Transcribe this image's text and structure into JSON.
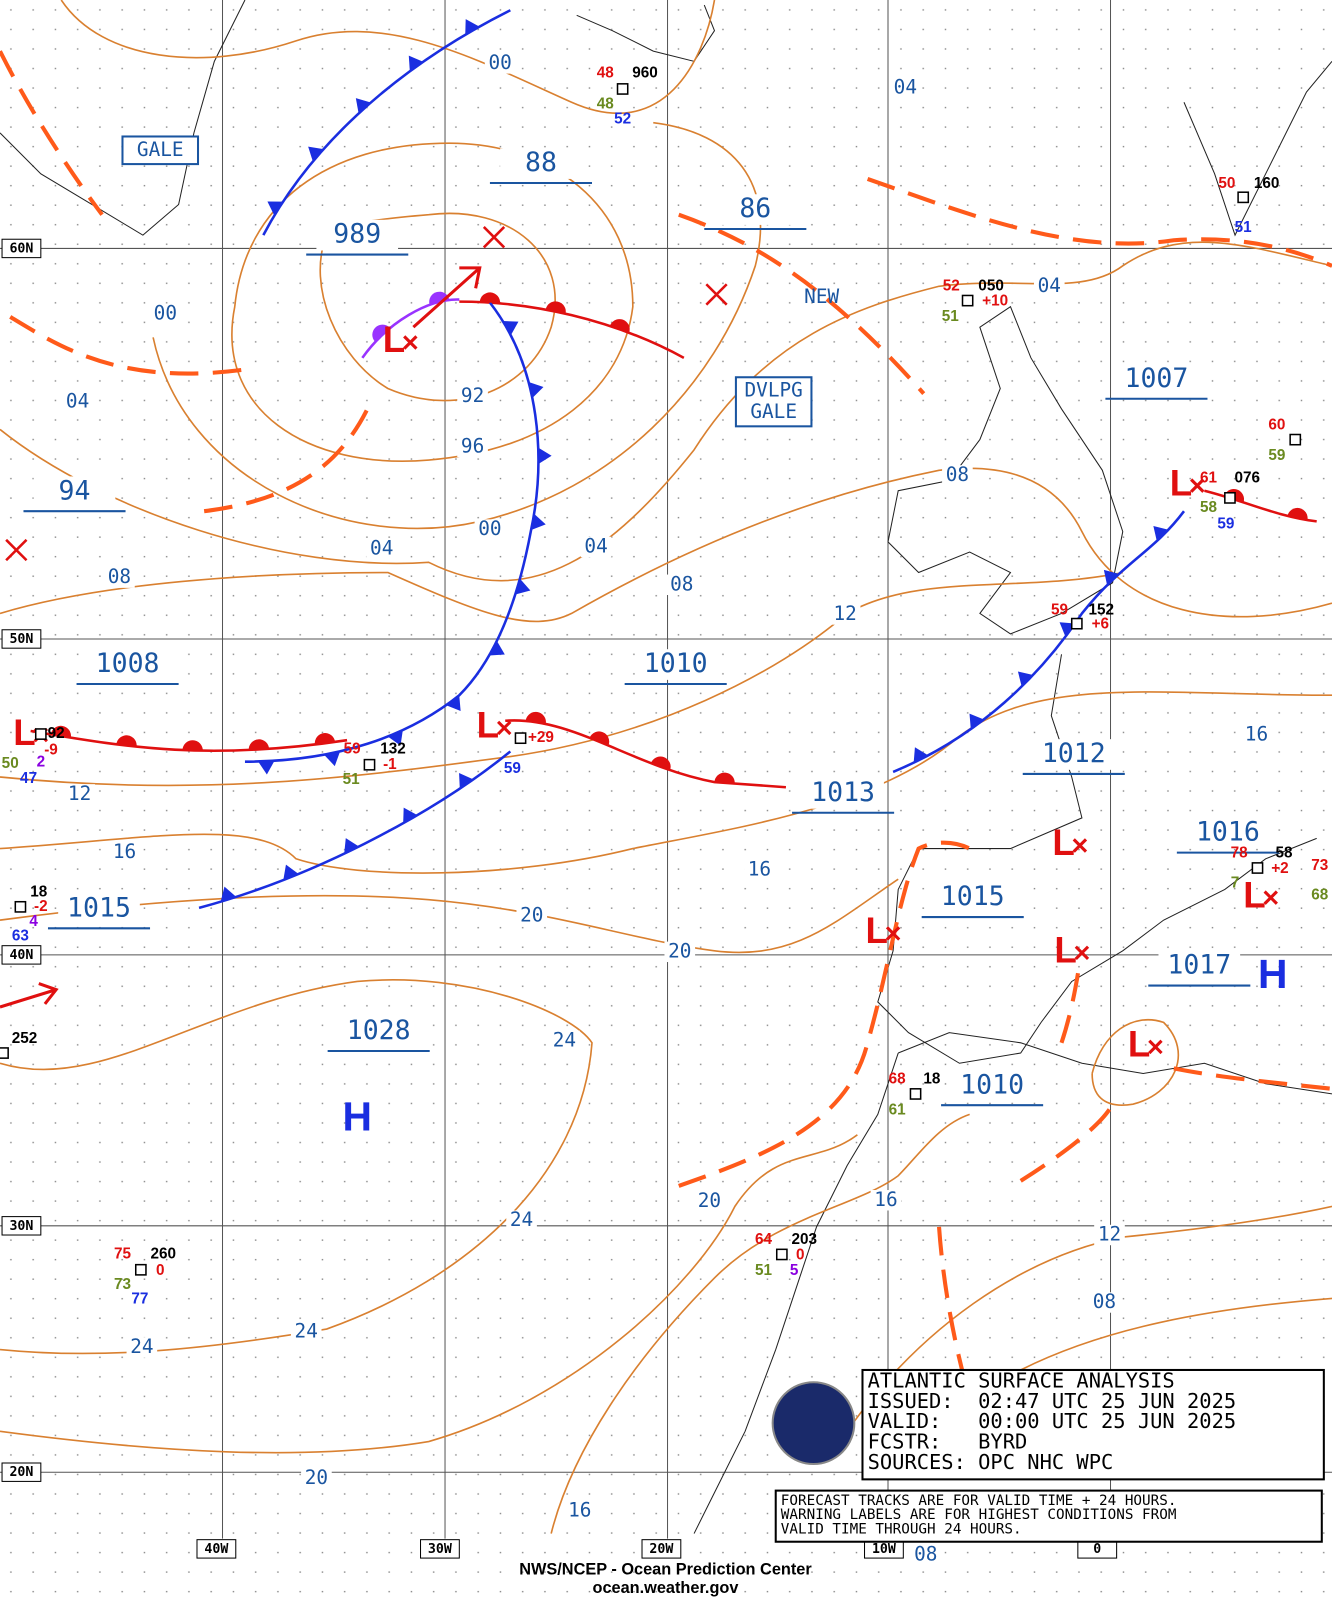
{
  "map": {
    "lat_labels": [
      "60N",
      "50N",
      "40N",
      "30N",
      "20N"
    ],
    "lon_labels": [
      "40W",
      "30W",
      "20W",
      "10W",
      "0"
    ],
    "isobar_labels": [
      "00",
      "04",
      "00",
      "04",
      "92",
      "96",
      "00",
      "04",
      "04",
      "08",
      "08",
      "12",
      "08",
      "04",
      "12",
      "16",
      "16",
      "16",
      "20",
      "20",
      "24",
      "24",
      "20",
      "16",
      "12",
      "08",
      "24",
      "24",
      "20",
      "16",
      "08"
    ],
    "pressure_centers": [
      "88",
      "86",
      "989",
      "94",
      "1008",
      "1010",
      "1013",
      "1012",
      "1007",
      "1015",
      "1015",
      "1028",
      "1010",
      "1016",
      "1017"
    ],
    "warnings": [
      [
        "GALE"
      ],
      [
        "DVLPG",
        "GALE"
      ]
    ],
    "new_label": "NEW",
    "highs": [
      "H",
      "H"
    ],
    "lows": [
      "L",
      "L",
      "L",
      "L",
      "L",
      "L",
      "L",
      "L",
      "L"
    ],
    "stations": [
      [
        "48",
        "960",
        "48",
        "52"
      ],
      [
        "52",
        "050",
        "+10",
        "51"
      ],
      [
        "50",
        "160",
        "51"
      ],
      [
        "60",
        "59"
      ],
      [
        "61",
        "076",
        "58",
        "59"
      ],
      [
        "59",
        "152",
        "+6"
      ],
      [
        "59",
        "132",
        "-1",
        "51"
      ],
      [
        "+29",
        "59"
      ],
      [
        "92",
        "-9",
        "50",
        "2",
        "47"
      ],
      [
        "18",
        "-2",
        "4",
        "63"
      ],
      [
        "252"
      ],
      [
        "75",
        "260",
        "0",
        "73",
        "77"
      ],
      [
        "64",
        "203",
        "0",
        "51",
        "5"
      ],
      [
        "68",
        "18",
        "61"
      ],
      [
        "78",
        "58",
        "+2",
        "7",
        "73",
        "68"
      ]
    ]
  },
  "info_box": {
    "title": "ATLANTIC SURFACE ANALYSIS",
    "issued": "ISSUED:  02:47 UTC 25 JUN 2025",
    "valid": "VALID:   00:00 UTC 25 JUN 2025",
    "forecaster": "FCSTR:   BYRD",
    "sources": "SOURCES: OPC NHC WPC"
  },
  "note": [
    "FORECAST TRACKS ARE FOR VALID TIME + 24 HOURS.",
    "WARNING LABELS ARE FOR HIGHEST CONDITIONS FROM",
    "VALID TIME THROUGH 24 HOURS."
  ],
  "footer": {
    "org": "NWS/NCEP - Ocean Prediction Center",
    "url": "ocean.weather.gov"
  }
}
